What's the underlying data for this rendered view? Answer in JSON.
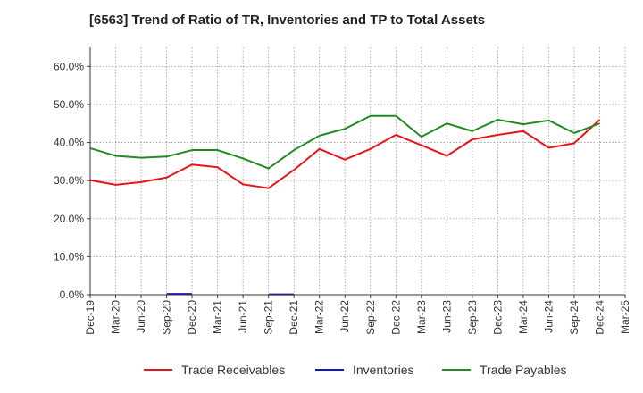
{
  "chart_data": {
    "type": "line",
    "title": "[6563]  Trend of Ratio of TR, Inventories and TP to Total Assets",
    "xlabel": "",
    "ylabel": "",
    "ylim": [
      0,
      65
    ],
    "y_ticks": [
      0,
      10,
      20,
      30,
      40,
      50,
      60
    ],
    "y_tick_suffix": "%",
    "x": [
      "Dec-19",
      "Mar-20",
      "Jun-20",
      "Sep-20",
      "Dec-20",
      "Mar-21",
      "Jun-21",
      "Sep-21",
      "Dec-21",
      "Mar-22",
      "Jun-22",
      "Sep-22",
      "Dec-22",
      "Mar-23",
      "Jun-23",
      "Sep-23",
      "Dec-23",
      "Mar-24",
      "Jun-24",
      "Sep-24",
      "Dec-24",
      "Mar-25"
    ],
    "grid": true,
    "legend_position": "bottom",
    "series": [
      {
        "name": "Trade Receivables",
        "color": "#e8141c",
        "values": [
          30.1,
          28.9,
          29.6,
          30.8,
          34.2,
          33.5,
          29.0,
          28.0,
          32.8,
          38.3,
          35.5,
          38.3,
          42.0,
          39.3,
          36.5,
          40.8,
          42.0,
          43.0,
          38.6,
          39.8,
          46.0,
          null
        ]
      },
      {
        "name": "Inventories",
        "color": "#1414c8",
        "values": [
          null,
          null,
          null,
          0.2,
          0.2,
          null,
          null,
          0.1,
          0.1,
          null,
          null,
          null,
          null,
          null,
          null,
          null,
          null,
          null,
          null,
          null,
          null,
          null
        ]
      },
      {
        "name": "Trade Payables",
        "color": "#228b22",
        "values": [
          38.5,
          36.5,
          36.0,
          36.3,
          38.0,
          38.0,
          35.8,
          33.2,
          38.0,
          41.8,
          43.6,
          47.0,
          47.0,
          41.5,
          45.0,
          43.0,
          46.0,
          44.8,
          45.8,
          42.5,
          45.0,
          null
        ]
      }
    ]
  }
}
